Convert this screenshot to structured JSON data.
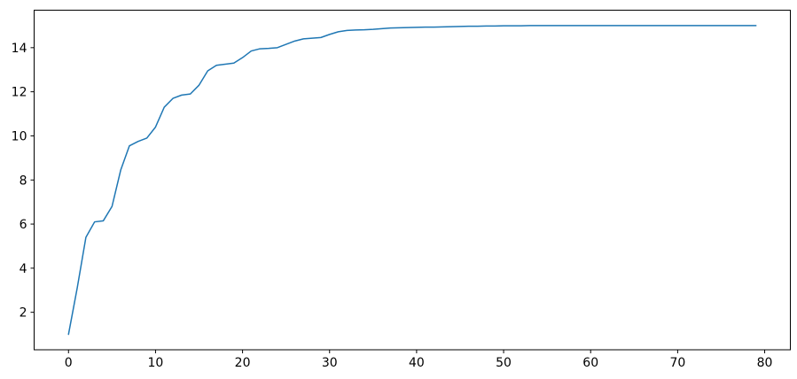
{
  "figure": {
    "background_color": "#ffffff",
    "spine_color": "#000000",
    "tick_color": "#000000",
    "tick_label_color": "#000000",
    "title": "",
    "legend": null
  },
  "chart_data": {
    "type": "line",
    "title": "",
    "xlabel": "",
    "ylabel": "",
    "grid": false,
    "legend_position": "none",
    "line_color": "#1f77b4",
    "line_width": 1.5,
    "xlim": [
      -3.95,
      82.95
    ],
    "ylim": [
      0.3,
      15.7
    ],
    "xticks": [
      0,
      10,
      20,
      30,
      40,
      50,
      60,
      70,
      80
    ],
    "yticks": [
      2,
      4,
      6,
      8,
      10,
      12,
      14
    ],
    "x": [
      0,
      1,
      2,
      3,
      4,
      5,
      6,
      7,
      8,
      9,
      10,
      11,
      12,
      13,
      14,
      15,
      16,
      17,
      18,
      19,
      20,
      21,
      22,
      23,
      24,
      25,
      26,
      27,
      28,
      29,
      30,
      31,
      32,
      33,
      34,
      35,
      36,
      37,
      38,
      39,
      40,
      41,
      42,
      43,
      44,
      45,
      46,
      47,
      48,
      49,
      50,
      51,
      52,
      53,
      54,
      55,
      56,
      57,
      58,
      59,
      60,
      61,
      62,
      63,
      64,
      65,
      66,
      67,
      68,
      69,
      70,
      71,
      72,
      73,
      74,
      75,
      76,
      77,
      78,
      79
    ],
    "values": [
      1.0,
      3.1,
      5.4,
      6.1,
      6.15,
      6.8,
      8.45,
      9.55,
      9.75,
      9.9,
      10.4,
      11.3,
      11.7,
      11.85,
      11.9,
      12.3,
      12.95,
      13.2,
      13.25,
      13.3,
      13.55,
      13.85,
      13.95,
      13.97,
      14.0,
      14.15,
      14.3,
      14.4,
      14.43,
      14.46,
      14.6,
      14.72,
      14.78,
      14.8,
      14.81,
      14.83,
      14.86,
      14.89,
      14.9,
      14.91,
      14.92,
      14.93,
      14.93,
      14.94,
      14.95,
      14.96,
      14.97,
      14.97,
      14.98,
      14.98,
      14.99,
      14.99,
      14.99,
      15.0,
      15.0,
      15.0,
      15.0,
      15.0,
      15.0,
      15.0,
      15.0,
      15.0,
      15.0,
      15.0,
      15.0,
      15.0,
      15.0,
      15.0,
      15.0,
      15.0,
      15.0,
      15.0,
      15.0,
      15.0,
      15.0,
      15.0,
      15.0,
      15.0,
      15.0,
      15.0
    ]
  }
}
